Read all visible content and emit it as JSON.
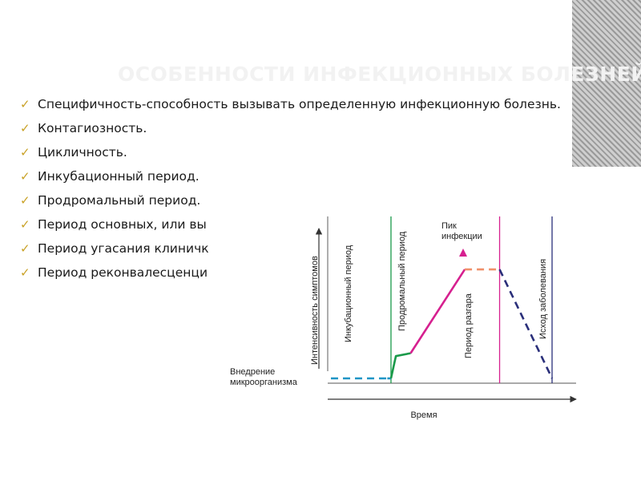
{
  "slide": {
    "title": "ОСОБЕННОСТИ ИНФЕКЦИОННЫХ БОЛЕЗНЕЙ.",
    "bullet_marker": "✓",
    "bullets": [
      "Специфичность-способность вызывать определенную инфекционную болезнь.",
      "Контагиозность.",
      "Цикличность.",
      "Инкубационный период.",
      "Продромальный период.",
      "Период основных, или вы",
      "Период угасания клиничк",
      "Период реконвалесценци"
    ]
  },
  "chart_data": {
    "type": "line",
    "title": "",
    "xlabel": "Время",
    "ylabel": "Интенсивность симптомов",
    "entry_label": "Внедрение микроорганизма",
    "peak_label": "Пик инфекции",
    "phases": [
      "Инкубационный период",
      "Продромальный период",
      "Период разгара",
      "Исход заболевания"
    ],
    "segments": [
      {
        "name": "incubation",
        "style": "dashed",
        "color": "#1f95c6",
        "points": [
          [
            0,
            0
          ],
          [
            0.23,
            0
          ]
        ]
      },
      {
        "name": "incubation",
        "style": "solid",
        "color": "#1f95c6",
        "points": [
          [
            0.23,
            0
          ],
          [
            0.245,
            0
          ]
        ]
      },
      {
        "name": "prodromal",
        "style": "solid",
        "color": "#1a9a4a",
        "points": [
          [
            0.245,
            0
          ],
          [
            0.265,
            0.196
          ],
          [
            0.325,
            0.221
          ]
        ]
      },
      {
        "name": "illness",
        "style": "solid",
        "color": "#d6208f",
        "points": [
          [
            0.325,
            0.221
          ],
          [
            0.546,
            0.957
          ]
        ]
      },
      {
        "name": "peak",
        "style": "dashed",
        "color": "#f0906a",
        "points": [
          [
            0.546,
            0.957
          ],
          [
            0.688,
            0.957
          ]
        ]
      },
      {
        "name": "outcome",
        "style": "dashed",
        "color": "#2a2f7a",
        "points": [
          [
            0.688,
            0.957
          ],
          [
            0.902,
            0
          ]
        ]
      }
    ],
    "phase_boundaries": [
      {
        "x": 0.245,
        "color": "#1a9a4a"
      },
      {
        "x": 0.688,
        "color": "#d6208f"
      },
      {
        "x": 0.902,
        "color": "#2a2f7a"
      }
    ],
    "grid": false,
    "legend": "none"
  }
}
